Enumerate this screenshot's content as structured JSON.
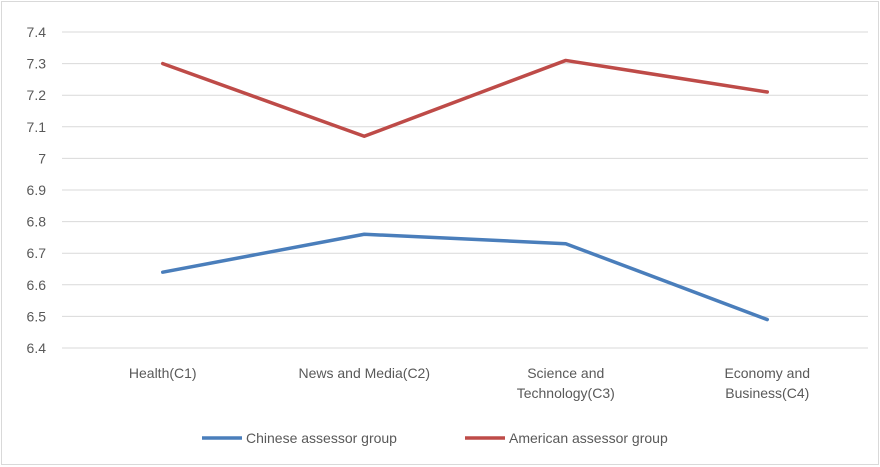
{
  "chart_data": {
    "type": "line",
    "categories": [
      [
        "Health(C1)"
      ],
      [
        "News and Media(C2)"
      ],
      [
        "Science and",
        "Technology(C3)"
      ],
      [
        "Economy and",
        "Business(C4)"
      ]
    ],
    "ylim": [
      6.4,
      7.4
    ],
    "yticks": [
      "6.4",
      "6.5",
      "6.6",
      "6.7",
      "6.8",
      "6.9",
      "7",
      "7.1",
      "7.2",
      "7.3",
      "7.4"
    ],
    "grid": true,
    "legend_position": "bottom",
    "series": [
      {
        "name": "Chinese assessor group",
        "color": "#4a7ebb",
        "values": [
          6.64,
          6.76,
          6.73,
          6.49
        ]
      },
      {
        "name": "American assessor group",
        "color": "#be4b48",
        "values": [
          7.3,
          7.07,
          7.31,
          7.21
        ]
      }
    ]
  }
}
